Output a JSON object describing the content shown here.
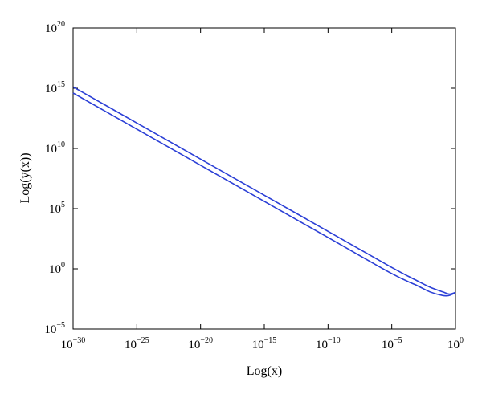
{
  "chart_data": {
    "type": "line",
    "xlabel": "Log(x)",
    "ylabel": "Log(y(x))",
    "x_scale": "log",
    "y_scale": "log",
    "xlim": [
      1e-30,
      1
    ],
    "ylim": [
      1e-05,
      1e+20
    ],
    "x_ticks": [
      {
        "base": "10",
        "exp": "−30",
        "value": 1e-30
      },
      {
        "base": "10",
        "exp": "−25",
        "value": 1e-25
      },
      {
        "base": "10",
        "exp": "−20",
        "value": 1e-20
      },
      {
        "base": "10",
        "exp": "−15",
        "value": 1e-15
      },
      {
        "base": "10",
        "exp": "−10",
        "value": 1e-10
      },
      {
        "base": "10",
        "exp": "−5",
        "value": 1e-05
      },
      {
        "base": "10",
        "exp": "0",
        "value": 1
      }
    ],
    "y_ticks": [
      {
        "base": "10",
        "exp": "−5",
        "value": 1e-05
      },
      {
        "base": "10",
        "exp": "0",
        "value": 1
      },
      {
        "base": "10",
        "exp": "5",
        "value": 100000.0
      },
      {
        "base": "10",
        "exp": "10",
        "value": 10000000000.0
      },
      {
        "base": "10",
        "exp": "15",
        "value": 1000000000000000.0
      },
      {
        "base": "10",
        "exp": "20",
        "value": 1e+20
      }
    ],
    "grid": false,
    "series": [
      {
        "color": "#2b3fd6",
        "x": [
          1e-30,
          1e-25,
          1e-20,
          1e-15,
          1e-10,
          1e-05,
          0.001,
          0.01,
          0.1,
          0.3,
          0.6,
          1
        ],
        "y": [
          1300000000000000.0,
          1300000000000.0,
          1300000000.0,
          1300000.0,
          1300,
          1.3,
          0.1,
          0.03,
          0.012,
          0.008,
          0.009,
          0.011
        ]
      },
      {
        "color": "#2b3fd6",
        "x": [
          1e-30,
          1e-25,
          1e-20,
          1e-15,
          1e-10,
          1e-05,
          0.001,
          0.01,
          0.1,
          0.3,
          0.6,
          1
        ],
        "y": [
          400000000000000.0,
          400000000000.0,
          400000000.0,
          400000.0,
          400,
          0.4,
          0.04,
          0.012,
          0.006,
          0.006,
          0.008,
          0.01
        ]
      }
    ]
  }
}
